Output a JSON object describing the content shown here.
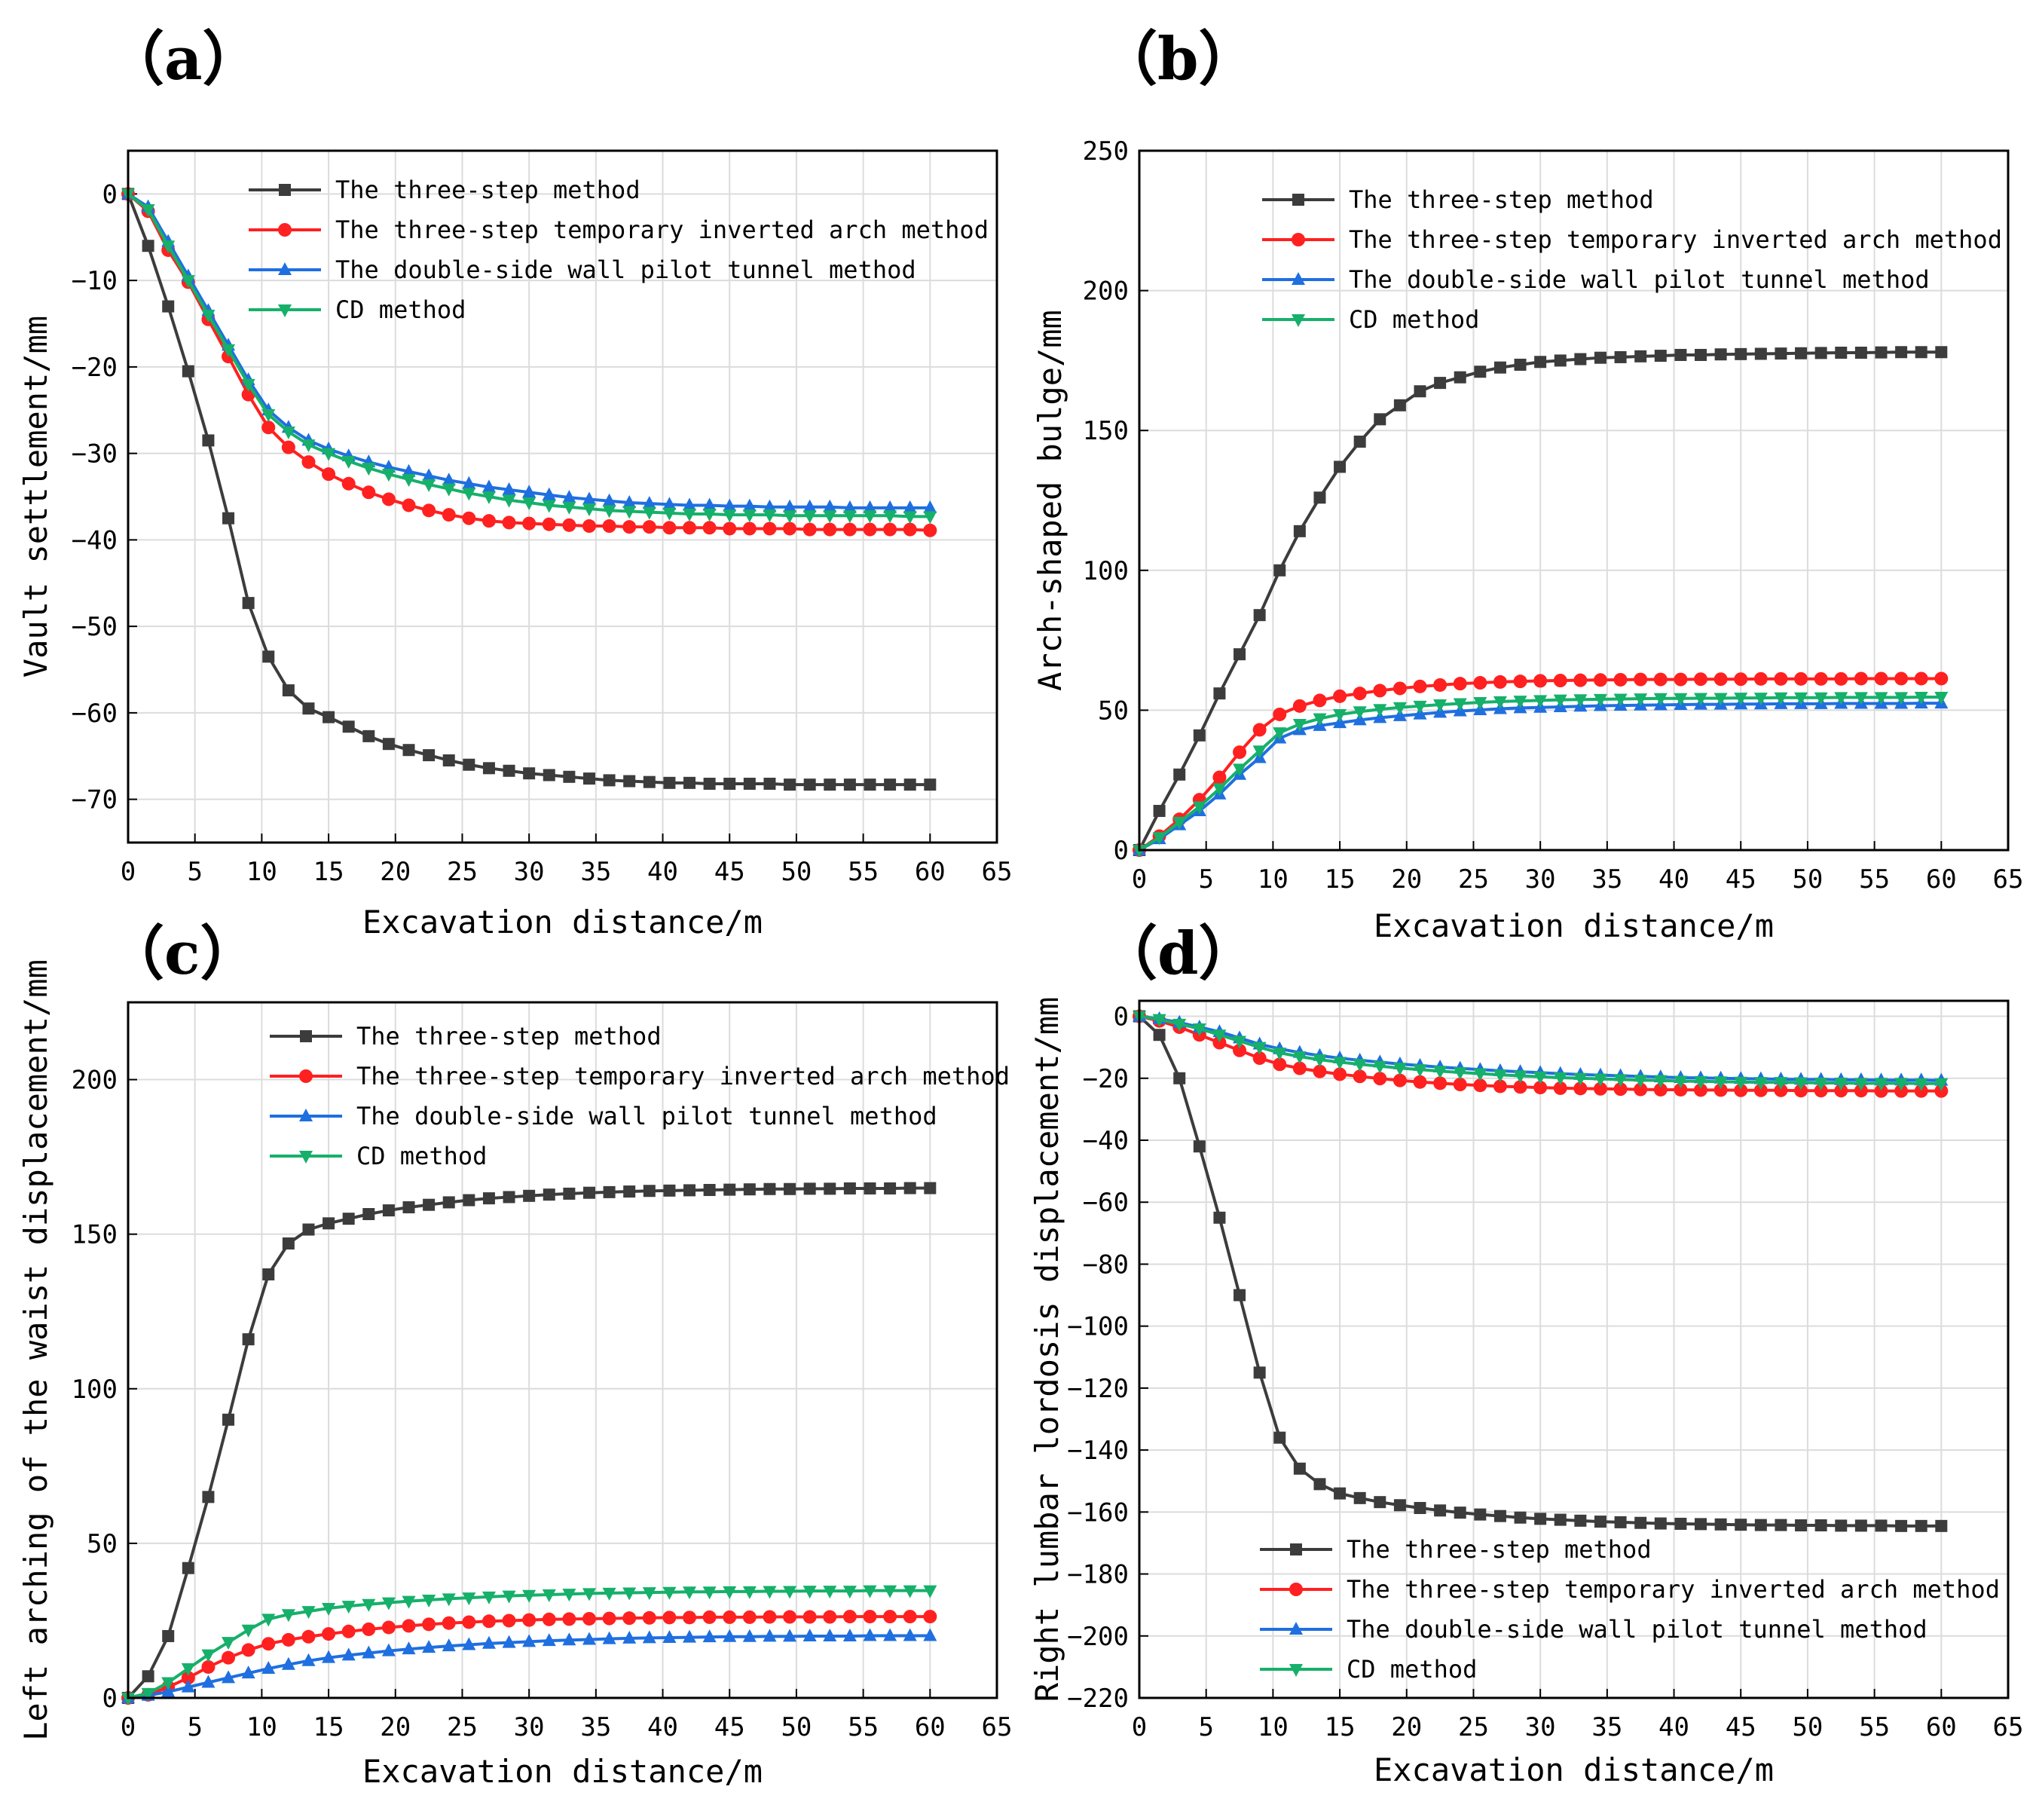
{
  "figure": {
    "panels": [
      "（a）",
      "（b）",
      "（c）",
      "（d）"
    ]
  },
  "colors": {
    "three_step": "#3c3c3c",
    "temp_inverted_arch": "#ff2020",
    "double_side_wall": "#1f6fe0",
    "cd_method": "#16b06a"
  },
  "chart_data": [
    {
      "type": "line",
      "panel": "（a）",
      "xlabel": "Excavation distance/m",
      "ylabel": "Vault settlement/mm",
      "xlim": [
        0,
        65
      ],
      "ylim": [
        -75,
        5
      ],
      "xticks": [
        0,
        5,
        10,
        15,
        20,
        25,
        30,
        35,
        40,
        45,
        50,
        55,
        60,
        65
      ],
      "yticks": [
        0,
        -10,
        -20,
        -30,
        -40,
        -50,
        -60,
        -70
      ],
      "grid": true,
      "legend_position": "top-right",
      "x": [
        0,
        1.5,
        3,
        4.5,
        6,
        7.5,
        9,
        10.5,
        12,
        13.5,
        15,
        16.5,
        18,
        19.5,
        21,
        22.5,
        24,
        25.5,
        27,
        28.5,
        30,
        31.5,
        33,
        34.5,
        36,
        37.5,
        39,
        40.5,
        42,
        43.5,
        45,
        46.5,
        48,
        49.5,
        51,
        52.5,
        54,
        55.5,
        57,
        58.5,
        60
      ],
      "series": [
        {
          "name": "The three-step method",
          "marker": "square",
          "color": "#3c3c3c",
          "values": [
            0,
            -6,
            -13,
            -20.5,
            -28.5,
            -37.5,
            -47.3,
            -53.5,
            -57.4,
            -59.5,
            -60.5,
            -61.6,
            -62.7,
            -63.6,
            -64.3,
            -64.9,
            -65.5,
            -66,
            -66.4,
            -66.7,
            -67,
            -67.2,
            -67.4,
            -67.6,
            -67.8,
            -67.9,
            -68,
            -68.1,
            -68.1,
            -68.2,
            -68.2,
            -68.2,
            -68.2,
            -68.3,
            -68.3,
            -68.3,
            -68.3,
            -68.3,
            -68.3,
            -68.3,
            -68.3
          ]
        },
        {
          "name": "The three-step temporary inverted arch method",
          "marker": "circle",
          "color": "#ff2020",
          "values": [
            0,
            -2,
            -6.5,
            -10.2,
            -14.5,
            -18.8,
            -23.2,
            -27,
            -29.3,
            -31,
            -32.4,
            -33.5,
            -34.5,
            -35.3,
            -36,
            -36.6,
            -37.1,
            -37.5,
            -37.8,
            -38,
            -38.1,
            -38.2,
            -38.3,
            -38.4,
            -38.4,
            -38.5,
            -38.5,
            -38.6,
            -38.6,
            -38.6,
            -38.7,
            -38.7,
            -38.7,
            -38.7,
            -38.8,
            -38.8,
            -38.8,
            -38.8,
            -38.8,
            -38.8,
            -38.9
          ]
        },
        {
          "name": "The double-side wall pilot tunnel method",
          "marker": "triangle-up",
          "color": "#1f6fe0",
          "values": [
            0,
            -1.5,
            -5.5,
            -9.5,
            -13.5,
            -17.5,
            -21.5,
            -25,
            -27,
            -28.5,
            -29.5,
            -30.3,
            -31,
            -31.6,
            -32.1,
            -32.6,
            -33.1,
            -33.5,
            -33.9,
            -34.2,
            -34.5,
            -34.8,
            -35.1,
            -35.3,
            -35.5,
            -35.7,
            -35.8,
            -35.9,
            -36,
            -36,
            -36.1,
            -36.1,
            -36.2,
            -36.2,
            -36.2,
            -36.2,
            -36.3,
            -36.3,
            -36.3,
            -36.3,
            -36.3
          ]
        },
        {
          "name": "CD method",
          "marker": "triangle-down",
          "color": "#16b06a",
          "values": [
            0,
            -1.8,
            -6,
            -10,
            -14,
            -18,
            -22,
            -25.5,
            -27.5,
            -29,
            -30,
            -30.9,
            -31.7,
            -32.4,
            -33,
            -33.6,
            -34.1,
            -34.6,
            -35,
            -35.4,
            -35.7,
            -36,
            -36.2,
            -36.4,
            -36.6,
            -36.7,
            -36.8,
            -36.9,
            -37,
            -37,
            -37.1,
            -37.1,
            -37.1,
            -37.2,
            -37.2,
            -37.2,
            -37.2,
            -37.2,
            -37.2,
            -37.3,
            -37.3
          ]
        }
      ]
    },
    {
      "type": "line",
      "panel": "（b）",
      "xlabel": "Excavation distance/m",
      "ylabel": "Arch-shaped bulge/mm",
      "xlim": [
        0,
        65
      ],
      "ylim": [
        0,
        250
      ],
      "xticks": [
        0,
        5,
        10,
        15,
        20,
        25,
        30,
        35,
        40,
        45,
        50,
        55,
        60,
        65
      ],
      "yticks": [
        0,
        50,
        100,
        150,
        200,
        250
      ],
      "grid": true,
      "legend_position": "top-right",
      "x": [
        0,
        1.5,
        3,
        4.5,
        6,
        7.5,
        9,
        10.5,
        12,
        13.5,
        15,
        16.5,
        18,
        19.5,
        21,
        22.5,
        24,
        25.5,
        27,
        28.5,
        30,
        31.5,
        33,
        34.5,
        36,
        37.5,
        39,
        40.5,
        42,
        43.5,
        45,
        46.5,
        48,
        49.5,
        51,
        52.5,
        54,
        55.5,
        57,
        58.5,
        60
      ],
      "series": [
        {
          "name": "The three-step method",
          "marker": "square",
          "color": "#3c3c3c",
          "values": [
            0,
            14,
            27,
            41,
            56,
            70,
            84,
            100,
            114,
            126,
            137,
            146,
            154,
            159,
            164,
            167,
            169,
            171,
            172.5,
            173.5,
            174.5,
            175,
            175.5,
            176,
            176.2,
            176.5,
            176.7,
            177,
            177,
            177.2,
            177.3,
            177.4,
            177.5,
            177.6,
            177.7,
            177.8,
            177.8,
            177.9,
            178,
            178,
            178
          ]
        },
        {
          "name": "The three-step temporary inverted arch method",
          "marker": "circle",
          "color": "#ff2020",
          "values": [
            0,
            5,
            11,
            18,
            26,
            35,
            43,
            48.5,
            51.5,
            53.5,
            55,
            56,
            57,
            57.8,
            58.5,
            59,
            59.5,
            59.8,
            60.1,
            60.3,
            60.5,
            60.6,
            60.7,
            60.8,
            60.9,
            61,
            61,
            61,
            61.1,
            61.1,
            61.1,
            61.2,
            61.2,
            61.2,
            61.2,
            61.2,
            61.3,
            61.3,
            61.3,
            61.3,
            61.3
          ]
        },
        {
          "name": "The double-side wall pilot tunnel method",
          "marker": "triangle-up",
          "color": "#1f6fe0",
          "values": [
            0,
            4,
            9,
            14,
            20,
            27,
            33,
            40,
            43,
            44.5,
            45.5,
            46.5,
            47.3,
            48,
            48.6,
            49.2,
            49.7,
            50.1,
            50.5,
            50.8,
            51,
            51.2,
            51.4,
            51.6,
            51.7,
            51.8,
            51.9,
            52,
            52.1,
            52.1,
            52.2,
            52.2,
            52.3,
            52.3,
            52.3,
            52.4,
            52.4,
            52.4,
            52.4,
            52.5,
            52.5
          ]
        },
        {
          "name": "CD method",
          "marker": "triangle-down",
          "color": "#16b06a",
          "values": [
            0,
            4.5,
            10,
            15.5,
            22,
            29,
            35.5,
            42,
            45,
            47,
            48.5,
            49.5,
            50.3,
            51,
            51.5,
            52,
            52.4,
            52.8,
            53.1,
            53.3,
            53.5,
            53.7,
            53.8,
            53.9,
            54,
            54.1,
            54.2,
            54.2,
            54.3,
            54.3,
            54.4,
            54.4,
            54.5,
            54.5,
            54.5,
            54.6,
            54.6,
            54.6,
            54.6,
            54.7,
            54.7
          ]
        }
      ]
    },
    {
      "type": "line",
      "panel": "（c）",
      "xlabel": "Excavation distance/m",
      "ylabel": "Left arching of the waist displacement/mm",
      "xlim": [
        0,
        65
      ],
      "ylim": [
        0,
        225
      ],
      "xticks": [
        0,
        5,
        10,
        15,
        20,
        25,
        30,
        35,
        40,
        45,
        50,
        55,
        60,
        65
      ],
      "yticks": [
        0,
        50,
        100,
        150,
        200
      ],
      "grid": true,
      "legend_position": "top-right",
      "x": [
        0,
        1.5,
        3,
        4.5,
        6,
        7.5,
        9,
        10.5,
        12,
        13.5,
        15,
        16.5,
        18,
        19.5,
        21,
        22.5,
        24,
        25.5,
        27,
        28.5,
        30,
        31.5,
        33,
        34.5,
        36,
        37.5,
        39,
        40.5,
        42,
        43.5,
        45,
        46.5,
        48,
        49.5,
        51,
        52.5,
        54,
        55.5,
        57,
        58.5,
        60
      ],
      "series": [
        {
          "name": "The three-step method",
          "marker": "square",
          "color": "#3c3c3c",
          "values": [
            0,
            7,
            20,
            42,
            65,
            90,
            116,
            137,
            147,
            151.5,
            153.5,
            155,
            156.5,
            157.7,
            158.7,
            159.5,
            160.3,
            161,
            161.6,
            162,
            162.4,
            162.8,
            163.1,
            163.4,
            163.6,
            163.8,
            164,
            164.1,
            164.2,
            164.3,
            164.4,
            164.5,
            164.6,
            164.6,
            164.7,
            164.7,
            164.8,
            164.8,
            164.8,
            164.9,
            164.9
          ]
        },
        {
          "name": "The three-step temporary inverted arch method",
          "marker": "circle",
          "color": "#ff2020",
          "values": [
            0,
            1,
            3.5,
            6.5,
            10,
            13,
            15.5,
            17.5,
            18.8,
            19.8,
            20.7,
            21.5,
            22.2,
            22.8,
            23.3,
            23.8,
            24.2,
            24.5,
            24.8,
            25,
            25.2,
            25.4,
            25.5,
            25.6,
            25.7,
            25.8,
            25.9,
            26,
            26,
            26.1,
            26.1,
            26.1,
            26.2,
            26.2,
            26.2,
            26.2,
            26.3,
            26.3,
            26.3,
            26.3,
            26.3
          ]
        },
        {
          "name": "The double-side wall pilot tunnel method",
          "marker": "triangle-up",
          "color": "#1f6fe0",
          "values": [
            0,
            0.8,
            2,
            3.5,
            5,
            6.5,
            8,
            9.5,
            10.8,
            12,
            13,
            13.8,
            14.5,
            15.2,
            15.8,
            16.3,
            16.8,
            17.2,
            17.6,
            17.9,
            18.2,
            18.5,
            18.7,
            18.9,
            19.1,
            19.3,
            19.4,
            19.5,
            19.6,
            19.7,
            19.8,
            19.8,
            19.9,
            19.9,
            20,
            20,
            20,
            20.1,
            20.1,
            20.1,
            20.1
          ]
        },
        {
          "name": "CD method",
          "marker": "triangle-down",
          "color": "#16b06a",
          "values": [
            0,
            1.5,
            5,
            9.5,
            14,
            18,
            22,
            25.5,
            27,
            28,
            29,
            29.7,
            30.3,
            30.8,
            31.3,
            31.7,
            32.1,
            32.4,
            32.7,
            33,
            33.2,
            33.4,
            33.6,
            33.8,
            33.9,
            34,
            34.1,
            34.2,
            34.3,
            34.3,
            34.4,
            34.4,
            34.5,
            34.5,
            34.6,
            34.6,
            34.6,
            34.7,
            34.7,
            34.7,
            34.7
          ]
        }
      ]
    },
    {
      "type": "line",
      "panel": "（d）",
      "xlabel": "Excavation distance/m",
      "ylabel": "Right lumbar lordosis displacement/mm",
      "xlim": [
        0,
        65
      ],
      "ylim": [
        -220,
        5
      ],
      "xticks": [
        0,
        5,
        10,
        15,
        20,
        25,
        30,
        35,
        40,
        45,
        50,
        55,
        60,
        65
      ],
      "yticks": [
        0,
        -20,
        -40,
        -60,
        -80,
        -100,
        -120,
        -140,
        -160,
        -180,
        -200,
        -220
      ],
      "grid": true,
      "legend_position": "bottom-right",
      "x": [
        0,
        1.5,
        3,
        4.5,
        6,
        7.5,
        9,
        10.5,
        12,
        13.5,
        15,
        16.5,
        18,
        19.5,
        21,
        22.5,
        24,
        25.5,
        27,
        28.5,
        30,
        31.5,
        33,
        34.5,
        36,
        37.5,
        39,
        40.5,
        42,
        43.5,
        45,
        46.5,
        48,
        49.5,
        51,
        52.5,
        54,
        55.5,
        57,
        58.5,
        60
      ],
      "series": [
        {
          "name": "The three-step method",
          "marker": "square",
          "color": "#3c3c3c",
          "values": [
            0,
            -6,
            -20,
            -42,
            -65,
            -90,
            -115,
            -136,
            -146,
            -151,
            -154,
            -155.5,
            -156.8,
            -157.8,
            -158.7,
            -159.5,
            -160.2,
            -160.8,
            -161.3,
            -161.8,
            -162.2,
            -162.5,
            -162.8,
            -163.1,
            -163.3,
            -163.5,
            -163.7,
            -163.8,
            -163.9,
            -164,
            -164.1,
            -164.2,
            -164.2,
            -164.3,
            -164.3,
            -164.4,
            -164.4,
            -164.4,
            -164.5,
            -164.5,
            -164.5
          ]
        },
        {
          "name": "The three-step temporary inverted arch method",
          "marker": "circle",
          "color": "#ff2020",
          "values": [
            0,
            -1.5,
            -3.5,
            -6,
            -8.5,
            -11,
            -13.5,
            -15.5,
            -16.8,
            -17.8,
            -18.7,
            -19.4,
            -20.1,
            -20.7,
            -21.2,
            -21.6,
            -22,
            -22.3,
            -22.6,
            -22.8,
            -23,
            -23.2,
            -23.3,
            -23.4,
            -23.5,
            -23.6,
            -23.7,
            -23.7,
            -23.8,
            -23.8,
            -23.9,
            -23.9,
            -23.9,
            -24,
            -24,
            -24,
            -24,
            -24.1,
            -24.1,
            -24.1,
            -24.1
          ]
        },
        {
          "name": "The double-side wall pilot tunnel method",
          "marker": "triangle-up",
          "color": "#1f6fe0",
          "values": [
            0,
            -0.8,
            -2,
            -3.5,
            -5,
            -7,
            -9,
            -10.5,
            -11.7,
            -12.7,
            -13.5,
            -14.2,
            -14.8,
            -15.4,
            -15.9,
            -16.4,
            -16.8,
            -17.2,
            -17.6,
            -17.9,
            -18.2,
            -18.5,
            -18.8,
            -19,
            -19.2,
            -19.4,
            -19.6,
            -19.8,
            -19.9,
            -20,
            -20.1,
            -20.2,
            -20.3,
            -20.4,
            -20.4,
            -20.5,
            -20.5,
            -20.6,
            -20.6,
            -20.6,
            -20.7
          ]
        },
        {
          "name": "CD method",
          "marker": "triangle-down",
          "color": "#16b06a",
          "values": [
            0,
            -1,
            -2.5,
            -4,
            -6,
            -8,
            -10,
            -11.8,
            -13,
            -14,
            -14.8,
            -15.5,
            -16.1,
            -16.7,
            -17.2,
            -17.7,
            -18.1,
            -18.5,
            -18.9,
            -19.2,
            -19.5,
            -19.8,
            -20,
            -20.2,
            -20.4,
            -20.6,
            -20.7,
            -20.9,
            -21,
            -21.1,
            -21.2,
            -21.3,
            -21.3,
            -21.4,
            -21.5,
            -21.5,
            -21.6,
            -21.6,
            -21.6,
            -21.7,
            -21.7
          ]
        }
      ]
    }
  ]
}
